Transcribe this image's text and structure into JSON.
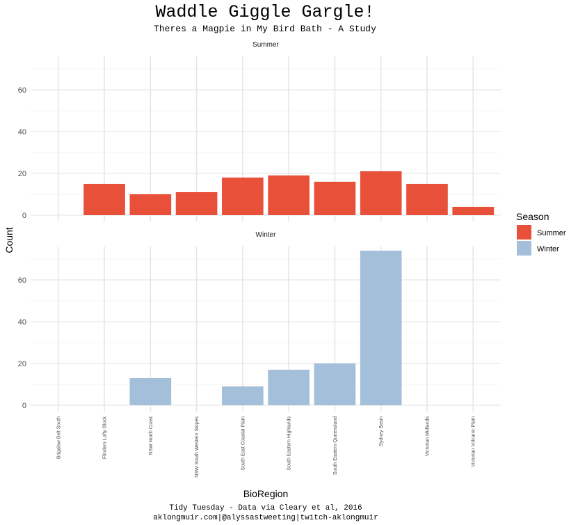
{
  "chart_data": {
    "type": "bar",
    "title": "Waddle Giggle Gargle!",
    "subtitle": "Theres a Magpie in My Bird Bath - A Study",
    "xlabel": "BioRegion",
    "ylabel": "Count",
    "ylim": [
      -3,
      76
    ],
    "yticks": [
      "0",
      "20",
      "40",
      "60"
    ],
    "grid": true,
    "categories": [
      "Brigalow Belt South",
      "Flinders Lofty Block",
      "NSW North Coast",
      "NSW South Western Slopes",
      "South East Coastal Plain",
      "South Eastern Highlands",
      "South Eastern Queensland",
      "Sydney Basin",
      "Victorian Midlands",
      "Victorian Volcanic Plain"
    ],
    "facets": [
      {
        "label": "Summer",
        "color": "#e9503a",
        "values": [
          null,
          15,
          10,
          11,
          18,
          19,
          16,
          21,
          15,
          4
        ]
      },
      {
        "label": "Winter",
        "color": "#a3bfd9",
        "values": [
          null,
          null,
          13,
          null,
          9,
          17,
          20,
          74,
          null,
          null
        ]
      }
    ],
    "legend": {
      "title": "Season",
      "position": "right",
      "items": [
        {
          "label": "Summer",
          "color": "#e9503a"
        },
        {
          "label": "Winter",
          "color": "#a3bfd9"
        }
      ]
    },
    "caption": [
      "Tidy Tuesday - Data via Cleary et al, 2016",
      "aklongmuir.com|@alyssastweeting|twitch-aklongmuir"
    ]
  }
}
